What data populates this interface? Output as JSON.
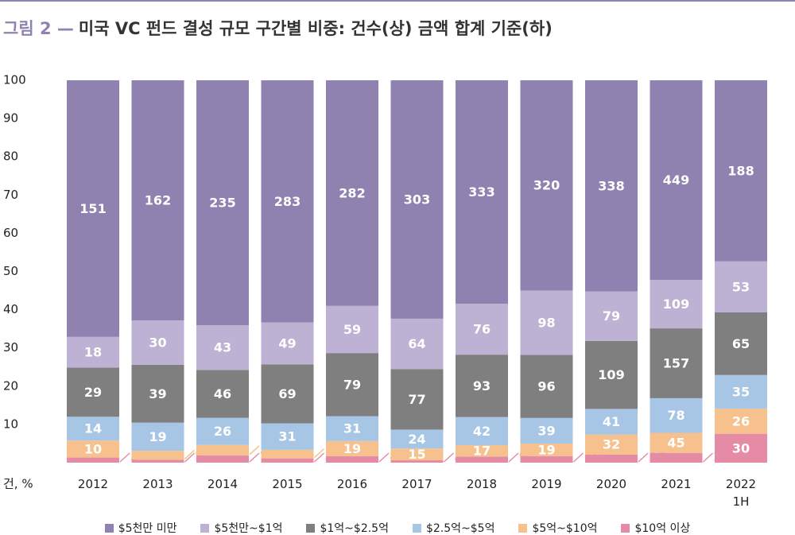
{
  "chart_data": {
    "type": "bar",
    "stacked": "percent",
    "figure_label": "그림 2 —",
    "title": "미국 VC 펀드 결성 규모 구간별 비중: 건수(상) 금액 합계 기준(하)",
    "ylabel": "건, %",
    "categories": [
      "2012",
      "2013",
      "2014",
      "2015",
      "2016",
      "2017",
      "2018",
      "2019",
      "2020",
      "2021",
      "2022\n1H"
    ],
    "series": [
      {
        "name": "$5천만 미만",
        "color": "#8f82b0",
        "values": [
          151,
          162,
          235,
          283,
          282,
          303,
          333,
          320,
          338,
          449,
          188
        ]
      },
      {
        "name": "$5천만~$1억",
        "color": "#bdb2d3",
        "values": [
          18,
          30,
          43,
          49,
          59,
          64,
          76,
          98,
          79,
          109,
          53
        ]
      },
      {
        "name": "$1억~$2.5억",
        "color": "#7f7f7f",
        "values": [
          29,
          39,
          46,
          69,
          79,
          77,
          93,
          96,
          109,
          157,
          65
        ]
      },
      {
        "name": "$2.5억~$5억",
        "color": "#a7c6e6",
        "values": [
          14,
          19,
          26,
          31,
          31,
          24,
          42,
          39,
          41,
          78,
          35
        ]
      },
      {
        "name": "$5억~$10억",
        "color": "#f6c18c",
        "values": [
          10,
          6,
          10,
          10,
          19,
          15,
          17,
          19,
          32,
          45,
          26
        ]
      },
      {
        "name": "$10억 이상",
        "color": "#e58ba6",
        "values": [
          3,
          2,
          7,
          5,
          8,
          3,
          9,
          10,
          13,
          22,
          30
        ]
      }
    ],
    "ylim": [
      0,
      100
    ],
    "yticks": [
      10,
      20,
      30,
      40,
      50,
      60,
      70,
      80,
      90,
      100
    ],
    "grid": false
  }
}
